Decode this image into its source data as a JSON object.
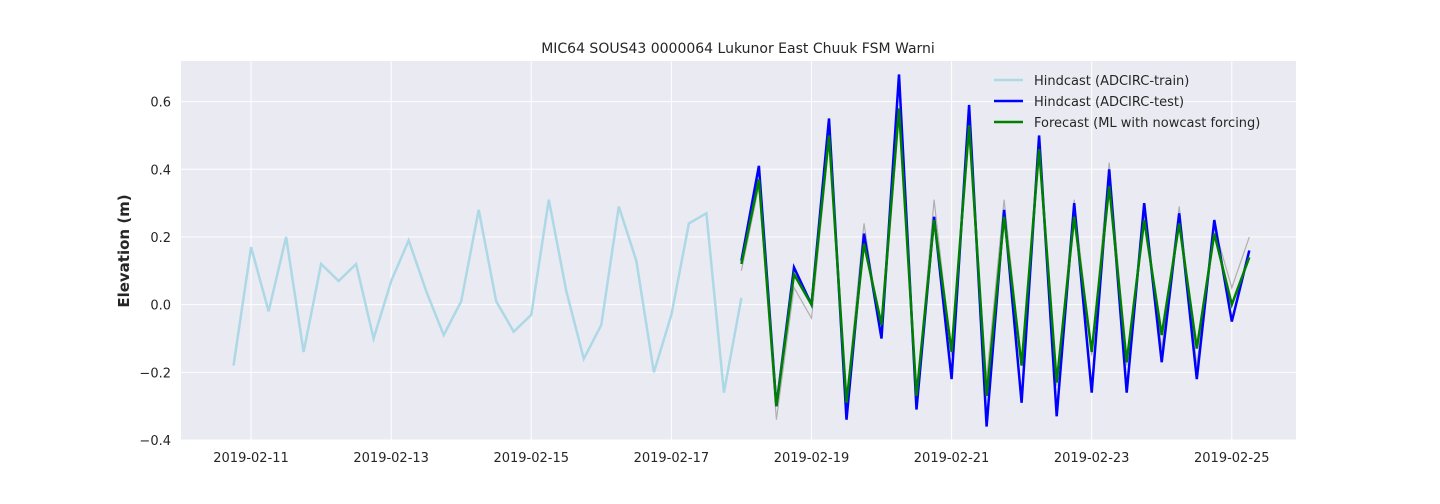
{
  "chart_data": {
    "type": "line",
    "title": "MIC64 SOUS43 0000064 Lukunor East Chuuk FSM Warni",
    "xlabel": "",
    "ylabel": "Elevation (m)",
    "xlim": [
      "2019-02-10T00:00",
      "2019-02-25T22:00"
    ],
    "ylim": [
      -0.4,
      0.72
    ],
    "grid": true,
    "legend_position": "top-right",
    "x_ticks": [
      "2019-02-11",
      "2019-02-13",
      "2019-02-15",
      "2019-02-17",
      "2019-02-19",
      "2019-02-21",
      "2019-02-23",
      "2019-02-25"
    ],
    "y_ticks": [
      "−0.4",
      "−0.2",
      "0.0",
      "0.2",
      "0.4",
      "0.6"
    ],
    "y_tick_values": [
      -0.4,
      -0.2,
      0.0,
      0.2,
      0.4,
      0.6
    ],
    "colors": {
      "background": "#eaeaf2",
      "grid": "#ffffff",
      "train": "#add8e6",
      "test": "#0000ff",
      "forecast": "#008000",
      "reference": "#b0b0b0"
    },
    "series": [
      {
        "key": "reference",
        "x": [
          "2019-02-18T00:00",
          "2019-02-18T06:00",
          "2019-02-18T12:00",
          "2019-02-18T18:00",
          "2019-02-19T00:00",
          "2019-02-19T06:00",
          "2019-02-19T12:00",
          "2019-02-19T18:00",
          "2019-02-20T00:00",
          "2019-02-20T06:00",
          "2019-02-20T12:00",
          "2019-02-20T18:00",
          "2019-02-21T00:00",
          "2019-02-21T06:00",
          "2019-02-21T12:00",
          "2019-02-21T18:00",
          "2019-02-22T00:00",
          "2019-02-22T06:00",
          "2019-02-22T12:00",
          "2019-02-22T18:00",
          "2019-02-23T00:00",
          "2019-02-23T06:00",
          "2019-02-23T12:00",
          "2019-02-23T18:00",
          "2019-02-24T00:00",
          "2019-02-24T06:00",
          "2019-02-24T12:00",
          "2019-02-24T18:00",
          "2019-02-25T00:00",
          "2019-02-25T06:00"
        ],
        "values": [
          0.1,
          0.35,
          -0.34,
          0.05,
          -0.04,
          0.48,
          -0.28,
          0.24,
          -0.1,
          0.56,
          -0.28,
          0.31,
          -0.15,
          0.5,
          -0.22,
          0.31,
          -0.18,
          0.44,
          -0.24,
          0.31,
          -0.15,
          0.42,
          -0.18,
          0.27,
          -0.13,
          0.29,
          -0.18,
          0.23,
          0.05,
          0.2
        ]
      },
      {
        "name": "Hindcast (ADCIRC-train)",
        "key": "train",
        "x": [
          "2019-02-10T18:00",
          "2019-02-11T00:00",
          "2019-02-11T06:00",
          "2019-02-11T12:00",
          "2019-02-11T18:00",
          "2019-02-12T00:00",
          "2019-02-12T06:00",
          "2019-02-12T12:00",
          "2019-02-12T18:00",
          "2019-02-13T00:00",
          "2019-02-13T06:00",
          "2019-02-13T12:00",
          "2019-02-13T18:00",
          "2019-02-14T00:00",
          "2019-02-14T06:00",
          "2019-02-14T12:00",
          "2019-02-14T18:00",
          "2019-02-15T00:00",
          "2019-02-15T06:00",
          "2019-02-15T12:00",
          "2019-02-15T18:00",
          "2019-02-16T00:00",
          "2019-02-16T06:00",
          "2019-02-16T12:00",
          "2019-02-16T18:00",
          "2019-02-17T00:00",
          "2019-02-17T06:00",
          "2019-02-17T12:00",
          "2019-02-17T18:00",
          "2019-02-18T00:00"
        ],
        "values": [
          -0.18,
          0.17,
          -0.02,
          0.2,
          -0.14,
          0.12,
          0.07,
          0.12,
          -0.1,
          0.07,
          0.19,
          0.04,
          -0.09,
          0.01,
          0.28,
          0.01,
          -0.08,
          -0.03,
          0.31,
          0.04,
          -0.16,
          -0.06,
          0.29,
          0.13,
          -0.2,
          -0.03,
          0.24,
          0.27,
          -0.26,
          0.02
        ]
      },
      {
        "name": "Hindcast (ADCIRC-test)",
        "key": "test",
        "x": [
          "2019-02-18T00:00",
          "2019-02-18T06:00",
          "2019-02-18T12:00",
          "2019-02-18T18:00",
          "2019-02-19T00:00",
          "2019-02-19T06:00",
          "2019-02-19T12:00",
          "2019-02-19T18:00",
          "2019-02-20T00:00",
          "2019-02-20T06:00",
          "2019-02-20T12:00",
          "2019-02-20T18:00",
          "2019-02-21T00:00",
          "2019-02-21T06:00",
          "2019-02-21T12:00",
          "2019-02-21T18:00",
          "2019-02-22T00:00",
          "2019-02-22T06:00",
          "2019-02-22T12:00",
          "2019-02-22T18:00",
          "2019-02-23T00:00",
          "2019-02-23T06:00",
          "2019-02-23T12:00",
          "2019-02-23T18:00",
          "2019-02-24T00:00",
          "2019-02-24T06:00",
          "2019-02-24T12:00",
          "2019-02-24T18:00",
          "2019-02-25T00:00",
          "2019-02-25T06:00"
        ],
        "values": [
          0.13,
          0.41,
          -0.3,
          0.11,
          0.0,
          0.55,
          -0.34,
          0.21,
          -0.1,
          0.68,
          -0.31,
          0.26,
          -0.22,
          0.59,
          -0.36,
          0.28,
          -0.29,
          0.5,
          -0.33,
          0.3,
          -0.26,
          0.4,
          -0.26,
          0.3,
          -0.17,
          0.27,
          -0.22,
          0.25,
          -0.05,
          0.16
        ]
      },
      {
        "name": "Forecast (ML with nowcast forcing)",
        "key": "forecast",
        "x": [
          "2019-02-18T00:00",
          "2019-02-18T06:00",
          "2019-02-18T12:00",
          "2019-02-18T18:00",
          "2019-02-19T00:00",
          "2019-02-19T06:00",
          "2019-02-19T12:00",
          "2019-02-19T18:00",
          "2019-02-20T00:00",
          "2019-02-20T06:00",
          "2019-02-20T12:00",
          "2019-02-20T18:00",
          "2019-02-21T00:00",
          "2019-02-21T06:00",
          "2019-02-21T12:00",
          "2019-02-21T18:00",
          "2019-02-22T00:00",
          "2019-02-22T06:00",
          "2019-02-22T12:00",
          "2019-02-22T18:00",
          "2019-02-23T00:00",
          "2019-02-23T06:00",
          "2019-02-23T12:00",
          "2019-02-23T18:00",
          "2019-02-24T00:00",
          "2019-02-24T06:00",
          "2019-02-24T12:00",
          "2019-02-24T18:00",
          "2019-02-25T00:00",
          "2019-02-25T06:00"
        ],
        "values": [
          0.12,
          0.37,
          -0.3,
          0.09,
          0.0,
          0.5,
          -0.29,
          0.18,
          -0.06,
          0.58,
          -0.27,
          0.25,
          -0.14,
          0.53,
          -0.27,
          0.26,
          -0.18,
          0.46,
          -0.23,
          0.26,
          -0.14,
          0.35,
          -0.17,
          0.25,
          -0.09,
          0.24,
          -0.13,
          0.21,
          0.0,
          0.14
        ]
      }
    ]
  }
}
